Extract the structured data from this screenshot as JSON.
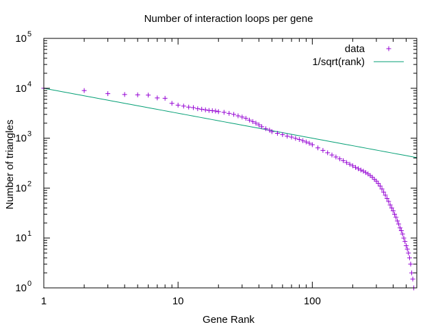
{
  "chart_data": {
    "type": "scatter",
    "title": "Number of interaction loops per gene",
    "xlabel": "Gene Rank",
    "ylabel": "Number of triangles",
    "xscale": "log",
    "yscale": "log",
    "xlim": [
      1,
      600
    ],
    "ylim": [
      1,
      100000
    ],
    "x_ticks": [
      {
        "value": 1,
        "label": "1"
      },
      {
        "value": 10,
        "label": "10"
      },
      {
        "value": 100,
        "label": "100"
      }
    ],
    "y_ticks": [
      {
        "value": 1,
        "base": "10",
        "exp": "0"
      },
      {
        "value": 10,
        "base": "10",
        "exp": "1"
      },
      {
        "value": 100,
        "base": "10",
        "exp": "2"
      },
      {
        "value": 1000,
        "base": "10",
        "exp": "3"
      },
      {
        "value": 10000,
        "base": "10",
        "exp": "4"
      },
      {
        "value": 100000,
        "base": "10",
        "exp": "5"
      }
    ],
    "grid": false,
    "legend_position": "top-right",
    "series": [
      {
        "name": "data",
        "style": "points",
        "marker": "plus",
        "color": "#9400d3",
        "points": [
          [
            1,
            10000
          ],
          [
            2,
            9000
          ],
          [
            3,
            7800
          ],
          [
            4,
            7500
          ],
          [
            5,
            7400
          ],
          [
            6,
            7300
          ],
          [
            7,
            6400
          ],
          [
            8,
            6300
          ],
          [
            9,
            5000
          ],
          [
            10,
            4600
          ],
          [
            11,
            4400
          ],
          [
            12,
            4200
          ],
          [
            13,
            4100
          ],
          [
            14,
            3900
          ],
          [
            15,
            3800
          ],
          [
            16,
            3700
          ],
          [
            17,
            3600
          ],
          [
            18,
            3550
          ],
          [
            19,
            3500
          ],
          [
            20,
            3400
          ],
          [
            22,
            3300
          ],
          [
            24,
            3150
          ],
          [
            26,
            3000
          ],
          [
            28,
            2800
          ],
          [
            30,
            2650
          ],
          [
            32,
            2500
          ],
          [
            34,
            2300
          ],
          [
            36,
            2150
          ],
          [
            38,
            2000
          ],
          [
            40,
            1850
          ],
          [
            42,
            1700
          ],
          [
            45,
            1550
          ],
          [
            48,
            1450
          ],
          [
            50,
            1350
          ],
          [
            55,
            1250
          ],
          [
            60,
            1180
          ],
          [
            65,
            1100
          ],
          [
            70,
            1050
          ],
          [
            75,
            990
          ],
          [
            80,
            940
          ],
          [
            85,
            890
          ],
          [
            90,
            840
          ],
          [
            95,
            790
          ],
          [
            100,
            740
          ],
          [
            110,
            640
          ],
          [
            120,
            570
          ],
          [
            130,
            510
          ],
          [
            140,
            460
          ],
          [
            150,
            420
          ],
          [
            160,
            385
          ],
          [
            170,
            355
          ],
          [
            180,
            325
          ],
          [
            190,
            300
          ],
          [
            200,
            280
          ],
          [
            210,
            260
          ],
          [
            220,
            245
          ],
          [
            230,
            230
          ],
          [
            240,
            218
          ],
          [
            250,
            205
          ],
          [
            260,
            192
          ],
          [
            270,
            178
          ],
          [
            280,
            165
          ],
          [
            290,
            150
          ],
          [
            300,
            138
          ],
          [
            310,
            124
          ],
          [
            320,
            110
          ],
          [
            330,
            96
          ],
          [
            340,
            83
          ],
          [
            350,
            72
          ],
          [
            360,
            62
          ],
          [
            370,
            54
          ],
          [
            380,
            46
          ],
          [
            390,
            40
          ],
          [
            400,
            35
          ],
          [
            410,
            30
          ],
          [
            420,
            26
          ],
          [
            430,
            22
          ],
          [
            440,
            19
          ],
          [
            450,
            16
          ],
          [
            460,
            14
          ],
          [
            470,
            12
          ],
          [
            480,
            10
          ],
          [
            490,
            8.5
          ],
          [
            500,
            7
          ],
          [
            510,
            6
          ],
          [
            520,
            5
          ],
          [
            530,
            4
          ],
          [
            540,
            3
          ],
          [
            550,
            2
          ],
          [
            560,
            1.5
          ],
          [
            570,
            1
          ]
        ]
      },
      {
        "name": "1/sqrt(rank)",
        "style": "line",
        "color": "#009e73",
        "function": "10000/sqrt(x)",
        "x_range": [
          1,
          600
        ]
      }
    ]
  }
}
